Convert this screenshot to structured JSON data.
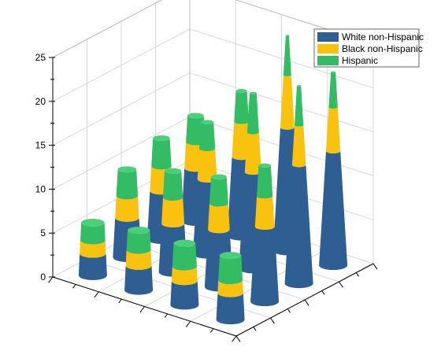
{
  "chart_data": {
    "type": "bar",
    "subtype": "3d-stacked-cone",
    "title": "",
    "xlabel": "",
    "ylabel": "",
    "zlabel": "",
    "zlim": [
      0,
      25
    ],
    "z_ticks": [
      "0",
      "5",
      "10",
      "15",
      "20",
      "25"
    ],
    "grid": true,
    "legend_position": "top-right",
    "series": [
      {
        "name": "White non-Hispanic",
        "color": "#2E5E92"
      },
      {
        "name": "Black non-Hispanic",
        "color": "#F9C20F"
      },
      {
        "name": "Hispanic",
        "color": "#33BC64"
      }
    ],
    "columns": [
      {
        "row": 1,
        "col": 1,
        "values": [
          3.0,
          1.5,
          2.8
        ]
      },
      {
        "row": 1,
        "col": 2,
        "values": [
          8.5,
          3.5,
          3.5
        ]
      },
      {
        "row": 1,
        "col": 3,
        "values": [
          13.5,
          4.5,
          4.5
        ]
      },
      {
        "row": 1,
        "col": 4,
        "values": [
          13.0,
          5.0,
          4.0
        ]
      },
      {
        "row": 2,
        "col": 1,
        "values": [
          2.7,
          1.7,
          2.6
        ]
      },
      {
        "row": 2,
        "col": 2,
        "values": [
          6.5,
          3.0,
          3.0
        ]
      },
      {
        "row": 2,
        "col": 3,
        "values": [
          11.0,
          4.5,
          4.5
        ]
      },
      {
        "row": 2,
        "col": 4,
        "values": [
          14.0,
          6.0,
          4.5
        ]
      },
      {
        "row": 3,
        "col": 1,
        "values": [
          2.8,
          1.8,
          2.2
        ]
      },
      {
        "row": 3,
        "col": 2,
        "values": [
          5.5,
          3.0,
          3.0
        ]
      },
      {
        "row": 3,
        "col": 3,
        "values": [
          8.5,
          3.5,
          3.0
        ]
      },
      {
        "row": 3,
        "col": 4,
        "values": [
          9.0,
          4.0,
          3.5
        ]
      },
      {
        "row": 4,
        "col": 1,
        "values": [
          2.5,
          1.5,
          2.0
        ]
      },
      {
        "row": 4,
        "col": 2,
        "values": [
          4.5,
          2.5,
          3.0
        ]
      },
      {
        "row": 4,
        "col": 3,
        "values": [
          5.5,
          2.8,
          3.2
        ]
      },
      {
        "row": 4,
        "col": 4,
        "values": [
          6.0,
          3.0,
          3.0
        ]
      }
    ]
  }
}
